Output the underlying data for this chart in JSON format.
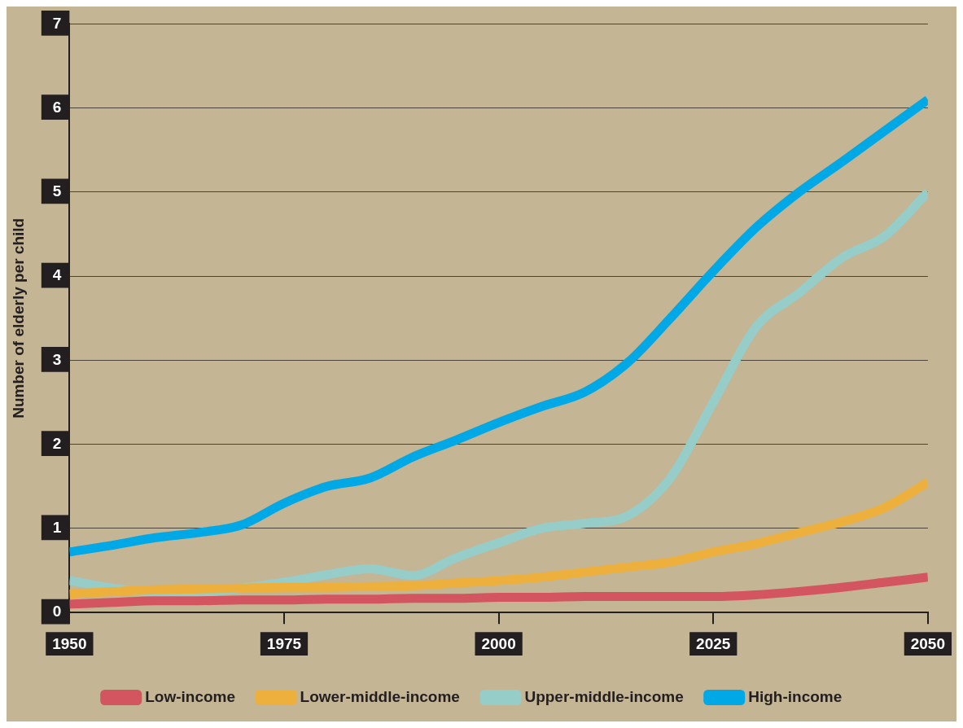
{
  "chart_data": {
    "type": "line",
    "ylabel": "Number of elderly per child",
    "xlim": [
      1950,
      2050
    ],
    "xticks": [
      1950,
      1975,
      2000,
      2025,
      2050
    ],
    "ylim": [
      0,
      7
    ],
    "yticks": [
      0,
      1,
      2,
      3,
      4,
      5,
      6,
      7
    ],
    "grid": "y",
    "legend": "bottom",
    "line_style": "solid",
    "marker": "none",
    "x": [
      1950,
      1955,
      1960,
      1965,
      1970,
      1975,
      1980,
      1985,
      1990,
      1995,
      2000,
      2005,
      2010,
      2015,
      2020,
      2025,
      2030,
      2035,
      2040,
      2045,
      2050
    ],
    "series": [
      {
        "name": "Low-income",
        "color": "#d2555f",
        "values": [
          0.1,
          0.12,
          0.14,
          0.14,
          0.15,
          0.15,
          0.16,
          0.16,
          0.17,
          0.17,
          0.18,
          0.18,
          0.19,
          0.19,
          0.19,
          0.19,
          0.21,
          0.25,
          0.3,
          0.36,
          0.42
        ]
      },
      {
        "name": "Lower-middle-income",
        "color": "#edb03c",
        "values": [
          0.22,
          0.25,
          0.27,
          0.28,
          0.29,
          0.3,
          0.3,
          0.31,
          0.32,
          0.35,
          0.38,
          0.42,
          0.48,
          0.54,
          0.6,
          0.72,
          0.82,
          0.95,
          1.08,
          1.25,
          1.55
        ]
      },
      {
        "name": "Upper-middle-income",
        "color": "#97cdc9",
        "values": [
          0.38,
          0.29,
          0.24,
          0.24,
          0.29,
          0.36,
          0.45,
          0.52,
          0.44,
          0.65,
          0.83,
          1.0,
          1.06,
          1.15,
          1.6,
          2.5,
          3.4,
          3.8,
          4.22,
          4.48,
          5.0
        ]
      },
      {
        "name": "High-income",
        "color": "#00a9e6",
        "values": [
          0.72,
          0.8,
          0.89,
          0.95,
          1.04,
          1.3,
          1.5,
          1.6,
          1.85,
          2.05,
          2.26,
          2.45,
          2.62,
          2.97,
          3.5,
          4.06,
          4.58,
          5.0,
          5.36,
          5.73,
          6.1
        ]
      }
    ]
  }
}
